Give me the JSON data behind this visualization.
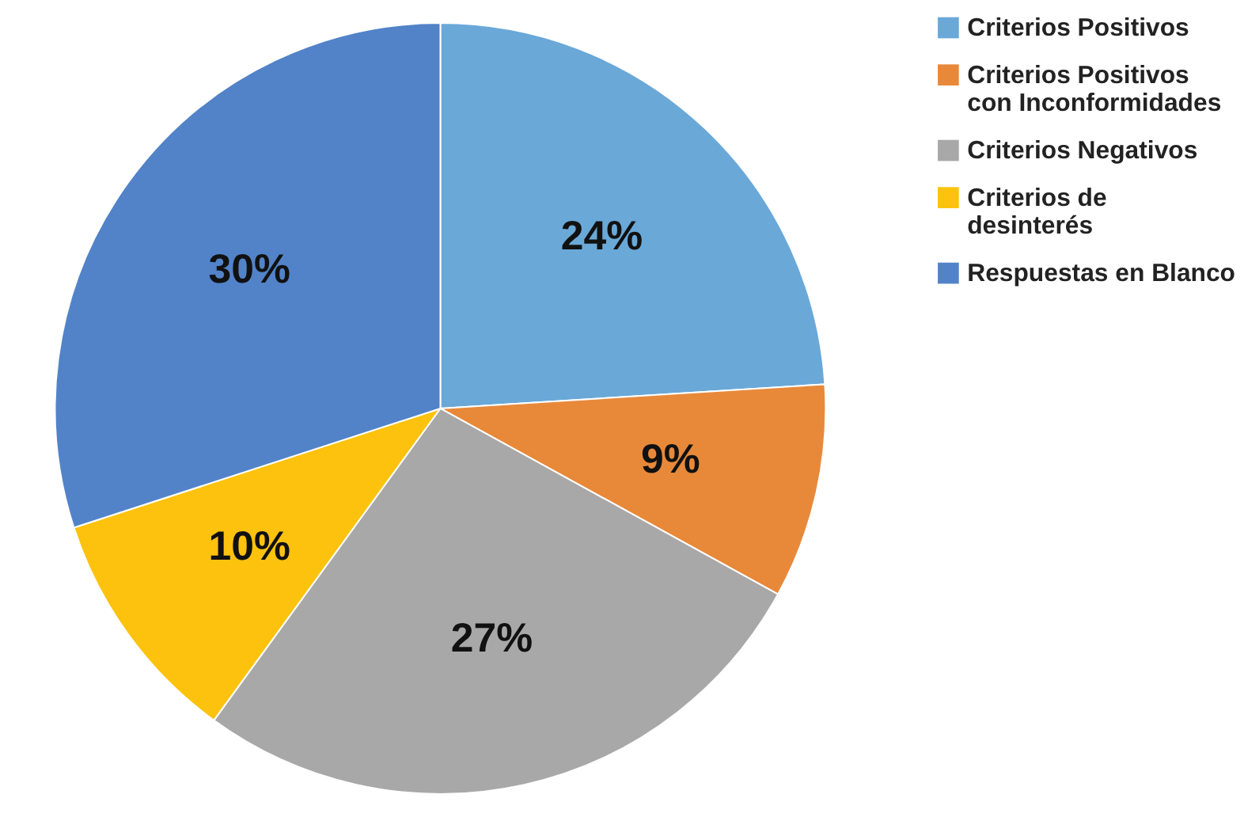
{
  "chart_data": {
    "type": "pie",
    "categories": [
      "Criterios Positivos",
      "Criterios Positivos con Inconformidades",
      "Criterios Negativos",
      "Criterios de desinterés",
      "Respuestas en Blanco"
    ],
    "values": [
      24,
      9,
      27,
      10,
      30
    ],
    "value_labels": [
      "24%",
      "9%",
      "27%",
      "10%",
      "30%"
    ],
    "colors": [
      "#6aa8d8",
      "#e8893a",
      "#a8a8a8",
      "#fcc20e",
      "#5283c8"
    ],
    "legend": "right"
  }
}
